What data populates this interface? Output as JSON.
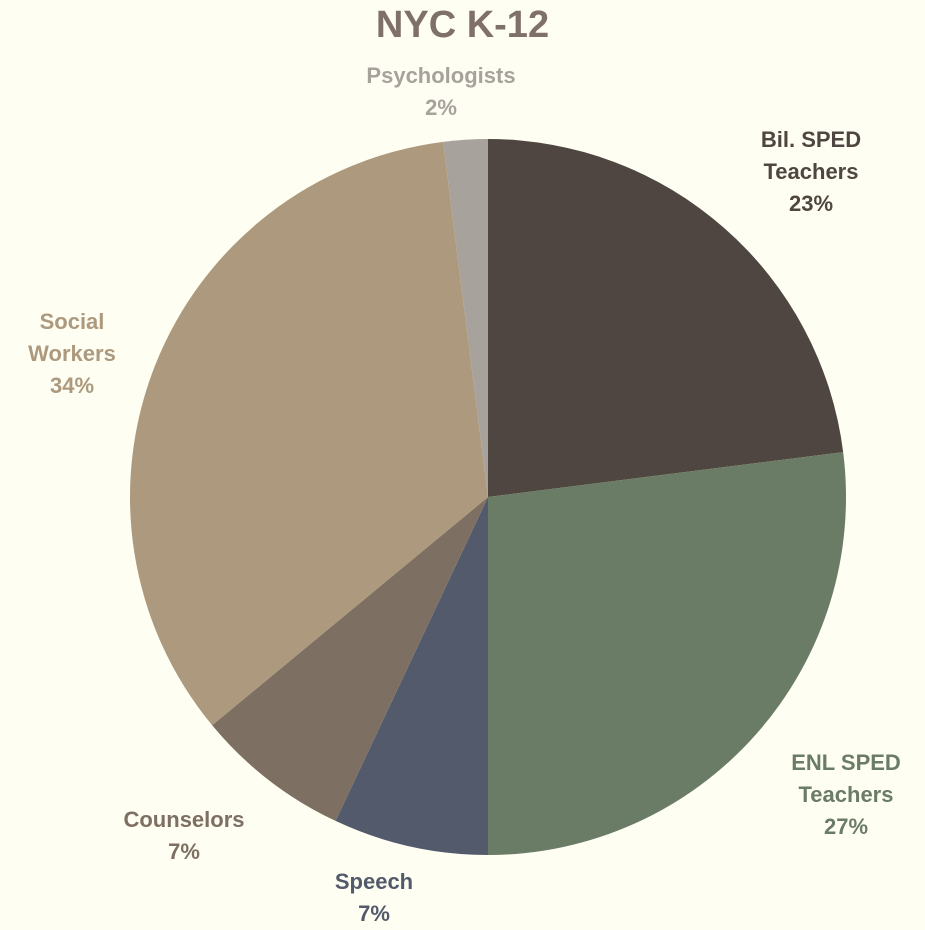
{
  "chart_data": {
    "type": "pie",
    "title": "NYC K-12",
    "categories": [
      "Bil. SPED Teachers",
      "ENL SPED Teachers",
      "Speech",
      "Counselors",
      "Social Workers",
      "Psychologists"
    ],
    "values": [
      23,
      27,
      7,
      7,
      34,
      2
    ],
    "value_labels": [
      "23%",
      "27%",
      "7%",
      "7%",
      "34%",
      "2%"
    ],
    "colors": [
      "#4f4641",
      "#6b7c66",
      "#525a6b",
      "#7e6f63",
      "#ad997d",
      "#a8a29c"
    ]
  }
}
